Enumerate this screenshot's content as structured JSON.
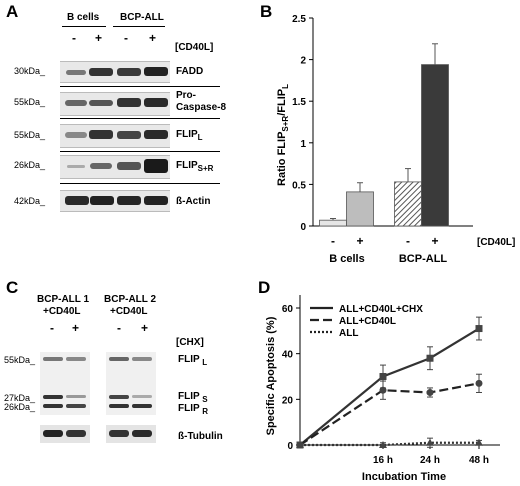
{
  "panel_a": {
    "label": "A",
    "group_b_cells": "B cells",
    "group_bcp_all": "BCP-ALL",
    "treatment_label": "[CD40L]",
    "lane_minus": "-",
    "lane_plus": "+",
    "rows": [
      {
        "mw": "30kDa_",
        "protein": "FADD"
      },
      {
        "mw": "55kDa_",
        "protein": "Pro-",
        "protein2": "Caspase-8"
      },
      {
        "mw": "55kDa_",
        "protein": "FLIP",
        "sub": "L"
      },
      {
        "mw": "26kDa_",
        "protein": "FLIP",
        "sub": "S+R"
      },
      {
        "mw": "42kDa_",
        "protein": "ß-Actin"
      }
    ]
  },
  "panel_b": {
    "label": "B",
    "ylabel_main": "Ratio FLIP",
    "ylabel_sub1": "S+R",
    "ylabel_mid": "/FLIP",
    "ylabel_sub2": "L",
    "treatment_label": "[CD40L]",
    "group_labels": [
      "B cells",
      "BCP-ALL"
    ],
    "lane_labels": [
      "-",
      "+",
      "-",
      "+"
    ]
  },
  "panel_c": {
    "label": "C",
    "group1_line1": "BCP-ALL 1",
    "group1_line2": "+CD40L",
    "group2_line1": "BCP-ALL 2",
    "group2_line2": "+CD40L",
    "treatment_label": "[CHX]",
    "lane_minus": "-",
    "lane_plus": "+",
    "mw_55": "55kDa_",
    "mw_27": "27kDa_",
    "mw_26": "26kDa_",
    "flip_l": "FLIP",
    "flip_l_sub": "L",
    "flip_s": "FLIP",
    "flip_s_sub": "S",
    "flip_r": "FLIP",
    "flip_r_sub": "R",
    "tubulin": "ß-Tubulin"
  },
  "panel_d": {
    "label": "D",
    "ylabel": "Specific Apoptosis (%)",
    "xlabel": "Incubation Time"
  },
  "chart_data": [
    {
      "type": "bar",
      "panel": "B",
      "categories": [
        "B cells -",
        "B cells +",
        "BCP-ALL -",
        "BCP-ALL +"
      ],
      "values": [
        0.07,
        0.41,
        0.53,
        1.94
      ],
      "errors": [
        0.02,
        0.11,
        0.16,
        0.25
      ],
      "ylim": [
        0,
        2.5
      ],
      "yticks": [
        "0",
        "0.5",
        "1",
        "1.5",
        "2",
        "2.5"
      ],
      "bar_colors": [
        "#e6e6e6",
        "#bdbdbd",
        "#a8a8a8",
        "#3a3a3a"
      ],
      "grid": false
    },
    {
      "type": "line",
      "panel": "D",
      "x": [
        "0",
        "16 h",
        "24 h",
        "48 h"
      ],
      "ylim": [
        0,
        60
      ],
      "yticks": [
        "0",
        "20",
        "40",
        "60"
      ],
      "legend_position": "top-left",
      "series": [
        {
          "name": "ALL+CD40L+CHX",
          "values": [
            0,
            30,
            38,
            51
          ],
          "errors": [
            0,
            5,
            5,
            5
          ],
          "style": "solid",
          "marker": "square"
        },
        {
          "name": "ALL+CD40L",
          "values": [
            0,
            24,
            23,
            27
          ],
          "errors": [
            0,
            4,
            2,
            4
          ],
          "style": "dashed",
          "marker": "circle"
        },
        {
          "name": "ALL",
          "values": [
            0,
            0,
            1,
            1
          ],
          "errors": [
            0,
            1,
            2,
            1
          ],
          "style": "dotted",
          "marker": "triangle"
        }
      ]
    }
  ]
}
